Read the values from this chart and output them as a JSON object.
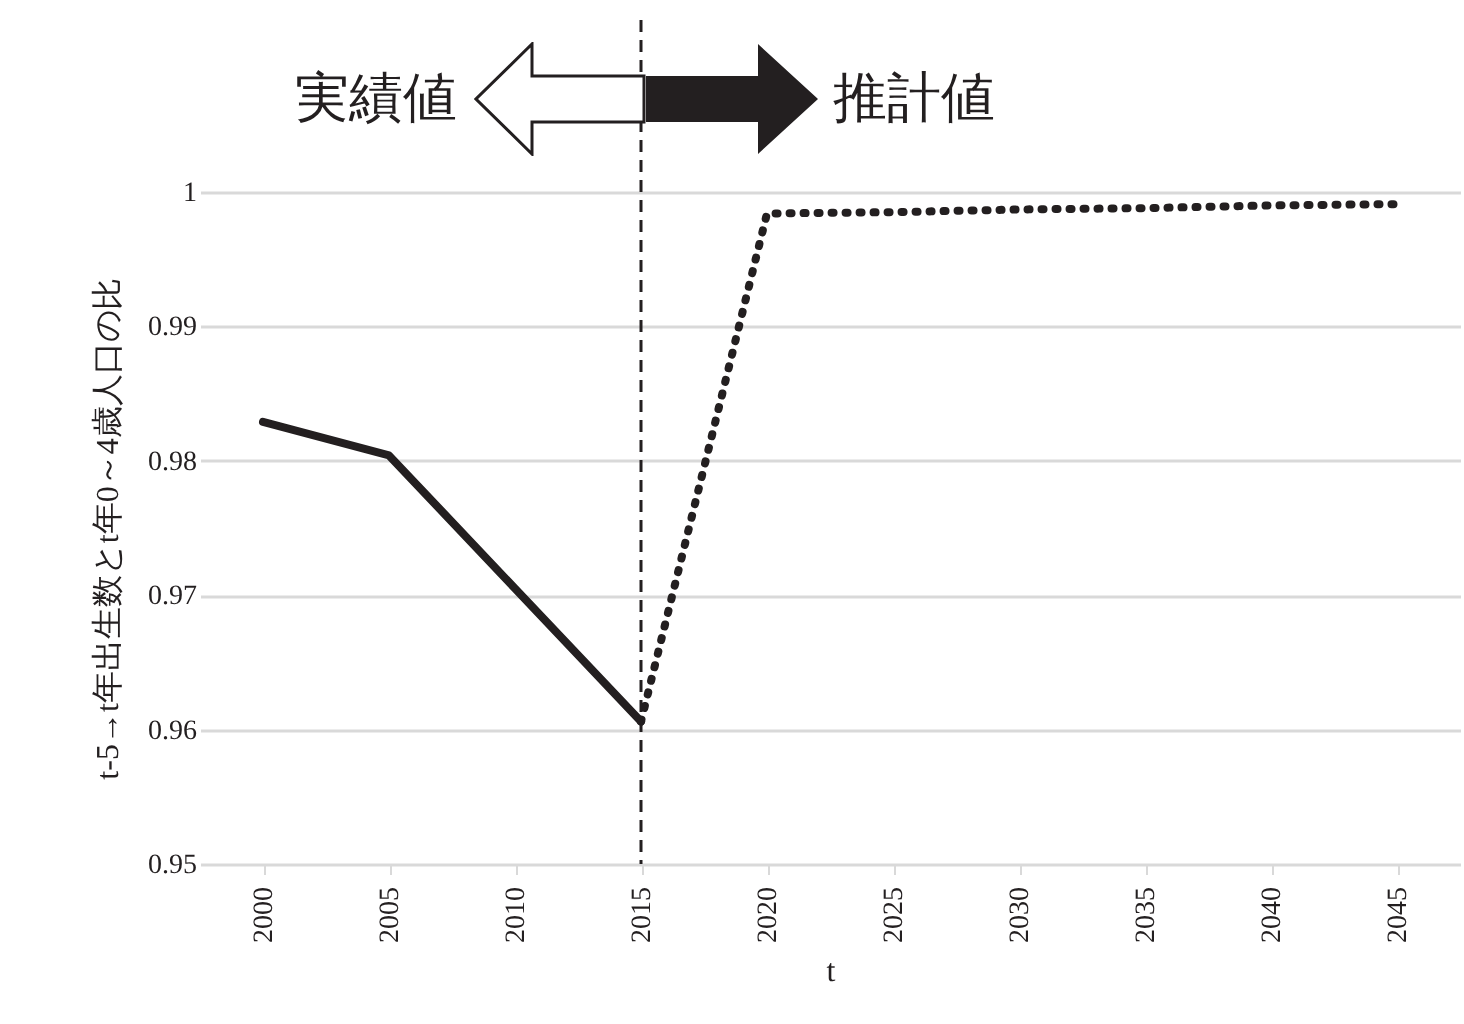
{
  "chart_data": {
    "type": "line",
    "xlabel": "t",
    "ylabel": "t-5→t年出生数とt年0～4歳人口の比",
    "categories": [
      "2000",
      "2005",
      "2010",
      "2015",
      "2020",
      "2025",
      "2030",
      "2035",
      "2040",
      "2045"
    ],
    "series": [
      {
        "color": "#231f20",
        "line_style": "solid",
        "values": [
          0.9829,
          0.9804,
          0.9705,
          0.9606,
          null,
          null,
          null,
          null,
          null,
          null
        ]
      },
      {
        "color": "#231f20",
        "line_style": "dotted",
        "values": [
          null,
          null,
          null,
          0.9606,
          0.9984,
          0.9985,
          0.9987,
          0.9988,
          0.999,
          0.9991
        ]
      }
    ],
    "ylim": [
      0.95,
      1
    ],
    "yticks": [
      0.95,
      0.96,
      0.97,
      0.98,
      0.99,
      1
    ],
    "grid": "y",
    "marker": "none",
    "ref_lines": [
      {
        "axis": "x",
        "value": "2015",
        "color": "#231f20",
        "line_style": "dashed"
      }
    ],
    "annotations": [
      "実績値",
      "推計値"
    ]
  }
}
